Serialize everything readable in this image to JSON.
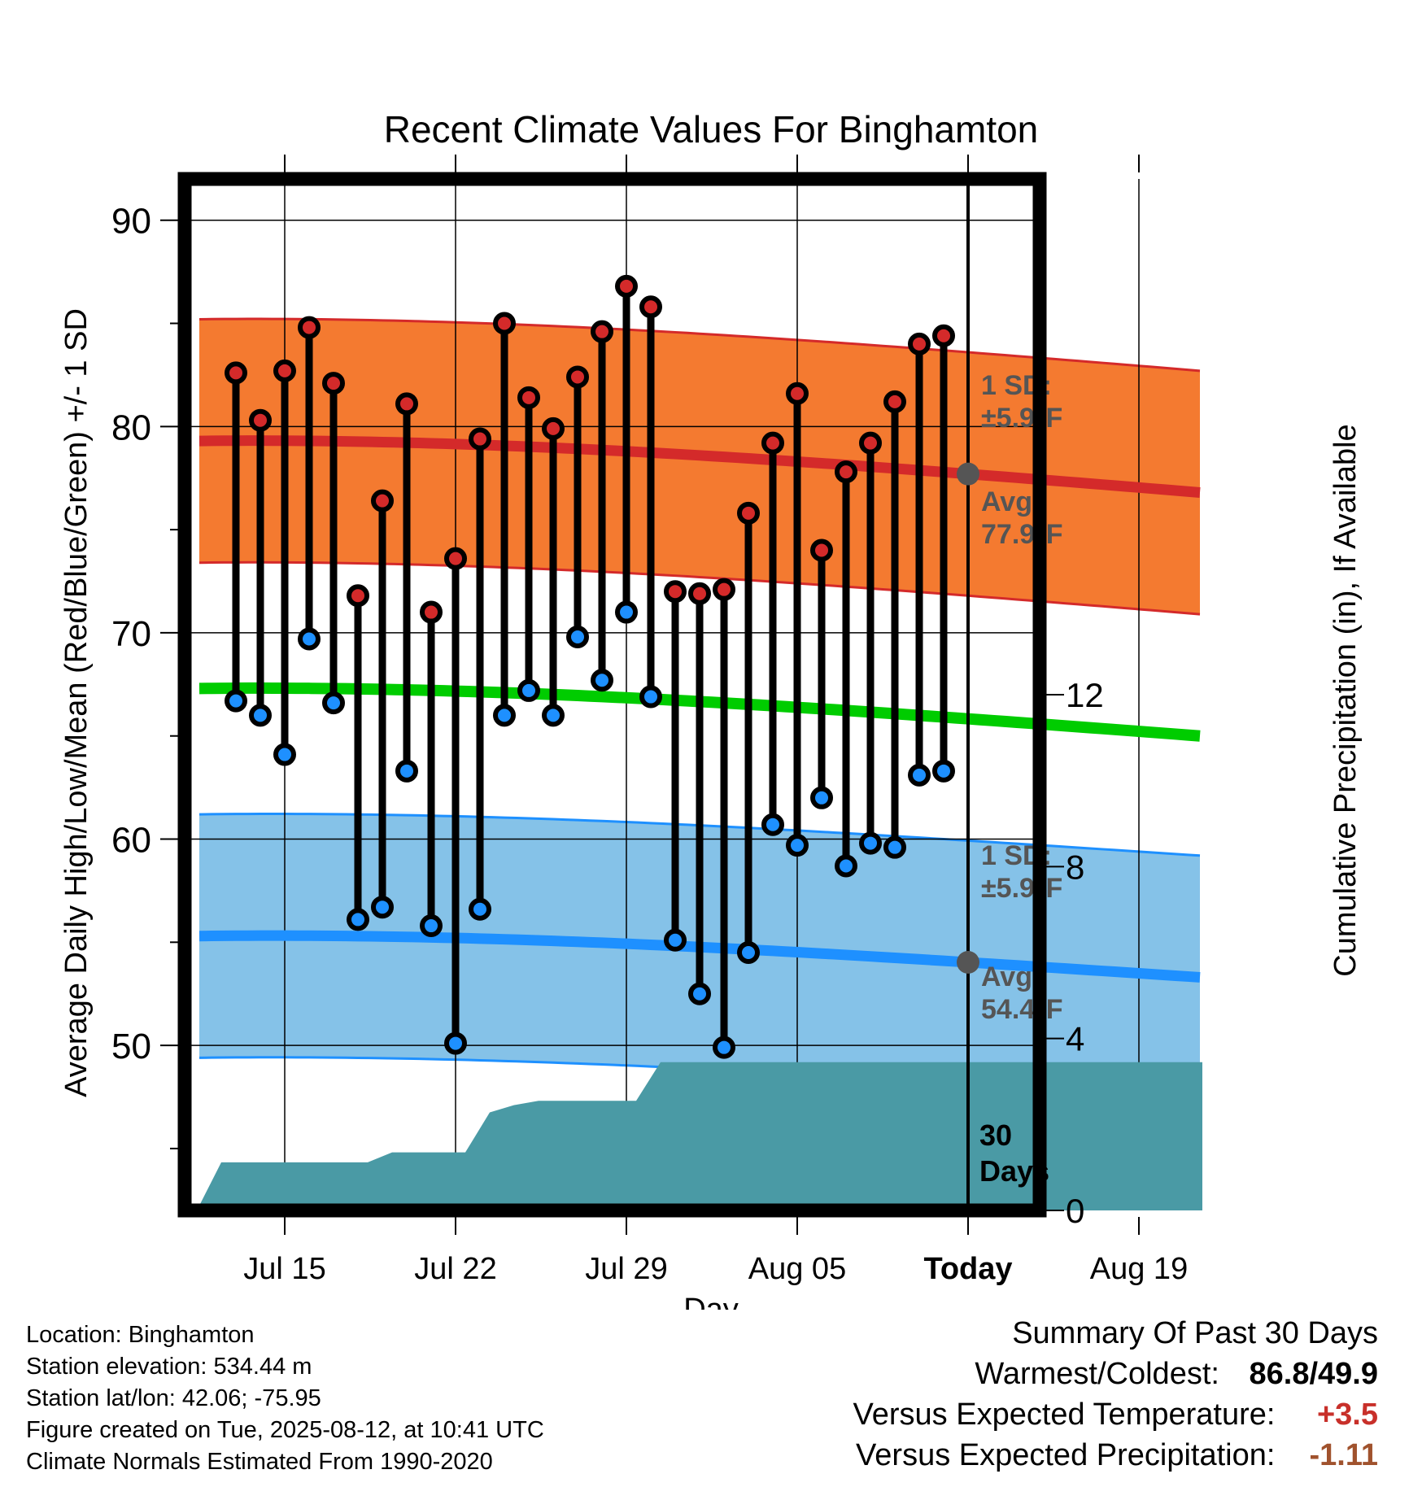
{
  "chart_data": {
    "type": "line",
    "title": "Recent Climate Values For Binghamton",
    "xlabel": "Day",
    "ylabel": "Average Daily High/Low/Mean (Red/Blue/Green) +/- 1 SD",
    "y2label": "Cumulative Precipitation (in), If Available",
    "ylim": [
      42,
      92
    ],
    "y2lim": [
      0,
      24
    ],
    "x_ticks": [
      "Jul 15",
      "Jul 22",
      "Jul 29",
      "Aug 05",
      "Today",
      "Aug 19"
    ],
    "y_ticks": [
      50,
      60,
      70,
      80,
      90
    ],
    "y2_ticks": [
      0,
      4,
      8,
      12
    ],
    "grid": true,
    "today_line_label": "30 Days",
    "normals": {
      "high_avg": {
        "start": 79.3,
        "end": 76.8,
        "label": "Avg:",
        "value": "77.9°F",
        "sd_label": "1 SD:",
        "sd_value": "±5.9°F"
      },
      "low_avg": {
        "start": 55.3,
        "end": 53.3,
        "label": "Avg:",
        "value": "54.4°F",
        "sd_label": "1 SD:",
        "sd_value": "±5.9°F"
      },
      "mean_avg": {
        "start": 67.3,
        "end": 65.0
      },
      "sd": 5.9
    },
    "series": [
      {
        "name": "High",
        "x": [
          "Jul 13",
          "Jul 14",
          "Jul 15",
          "Jul 16",
          "Jul 17",
          "Jul 18",
          "Jul 19",
          "Jul 20",
          "Jul 21",
          "Jul 22",
          "Jul 23",
          "Jul 24",
          "Jul 25",
          "Jul 26",
          "Jul 27",
          "Jul 28",
          "Jul 29",
          "Jul 30",
          "Jul 31",
          "Aug 01",
          "Aug 02",
          "Aug 03",
          "Aug 04",
          "Aug 05",
          "Aug 06",
          "Aug 07",
          "Aug 08",
          "Aug 09",
          "Aug 10",
          "Aug 11"
        ],
        "values": [
          82.6,
          80.3,
          82.7,
          84.8,
          82.1,
          71.8,
          76.4,
          81.1,
          71.0,
          73.6,
          79.4,
          85.0,
          81.4,
          79.9,
          82.4,
          84.6,
          86.8,
          85.8,
          72.0,
          71.9,
          72.1,
          75.8,
          79.2,
          81.6,
          74.0,
          77.8,
          79.2,
          81.2,
          84.0,
          84.4
        ]
      },
      {
        "name": "Low",
        "x": [
          "Jul 13",
          "Jul 14",
          "Jul 15",
          "Jul 16",
          "Jul 17",
          "Jul 18",
          "Jul 19",
          "Jul 20",
          "Jul 21",
          "Jul 22",
          "Jul 23",
          "Jul 24",
          "Jul 25",
          "Jul 26",
          "Jul 27",
          "Jul 28",
          "Jul 29",
          "Jul 30",
          "Jul 31",
          "Aug 01",
          "Aug 02",
          "Aug 03",
          "Aug 04",
          "Aug 05",
          "Aug 06",
          "Aug 07",
          "Aug 08",
          "Aug 09",
          "Aug 10",
          "Aug 11"
        ],
        "values": [
          66.7,
          66.0,
          64.1,
          69.7,
          66.6,
          56.1,
          56.7,
          63.3,
          55.8,
          50.1,
          56.6,
          66.0,
          67.2,
          66.0,
          69.8,
          67.7,
          71.0,
          66.9,
          55.1,
          52.5,
          49.9,
          54.5,
          60.7,
          59.7,
          62.0,
          58.7,
          59.8,
          59.6,
          63.1,
          63.3
        ]
      },
      {
        "name": "Cumulative Precipitation",
        "x": [
          "Jul 12",
          "Jul 13",
          "Jul 19",
          "Jul 20",
          "Jul 23",
          "Jul 24",
          "Jul 25",
          "Jul 26",
          "Jul 27",
          "Jul 30",
          "Jul 31",
          "Aug 21"
        ],
        "values": [
          0.0,
          1.12,
          1.12,
          1.35,
          1.35,
          2.28,
          2.45,
          2.55,
          2.55,
          2.55,
          3.45,
          3.45
        ]
      }
    ]
  },
  "footer": {
    "location": "Location: Binghamton",
    "elevation": "Station elevation: 534.44 m",
    "latlon": "Station lat/lon: 42.06; -75.95",
    "created": "Figure created on Tue, 2025-08-12, at 10:41 UTC",
    "normals": "Climate Normals Estimated From 1990-2020"
  },
  "summary": {
    "heading": "Summary Of Past 30 Days",
    "warmest_label": "Warmest/Coldest:",
    "warmest_value": "86.8/49.9",
    "temp_label": "Versus Expected Temperature:",
    "temp_value": "+3.5",
    "temp_color": "#c8302a",
    "precip_label": "Versus Expected Precipitation:",
    "precip_value": "-1.11",
    "precip_color": "#a0522d"
  },
  "colors": {
    "high_band": "#f47a30",
    "high_line": "#d42a2a",
    "low_band": "#85c2e8",
    "low_line": "#1e90ff",
    "mean_line": "#00cc00",
    "precip": "#4a9aa5",
    "high_marker": "#d42a2a",
    "low_marker": "#1e90ff",
    "avg_marker": "#555555",
    "annotation_text": "#555555"
  }
}
